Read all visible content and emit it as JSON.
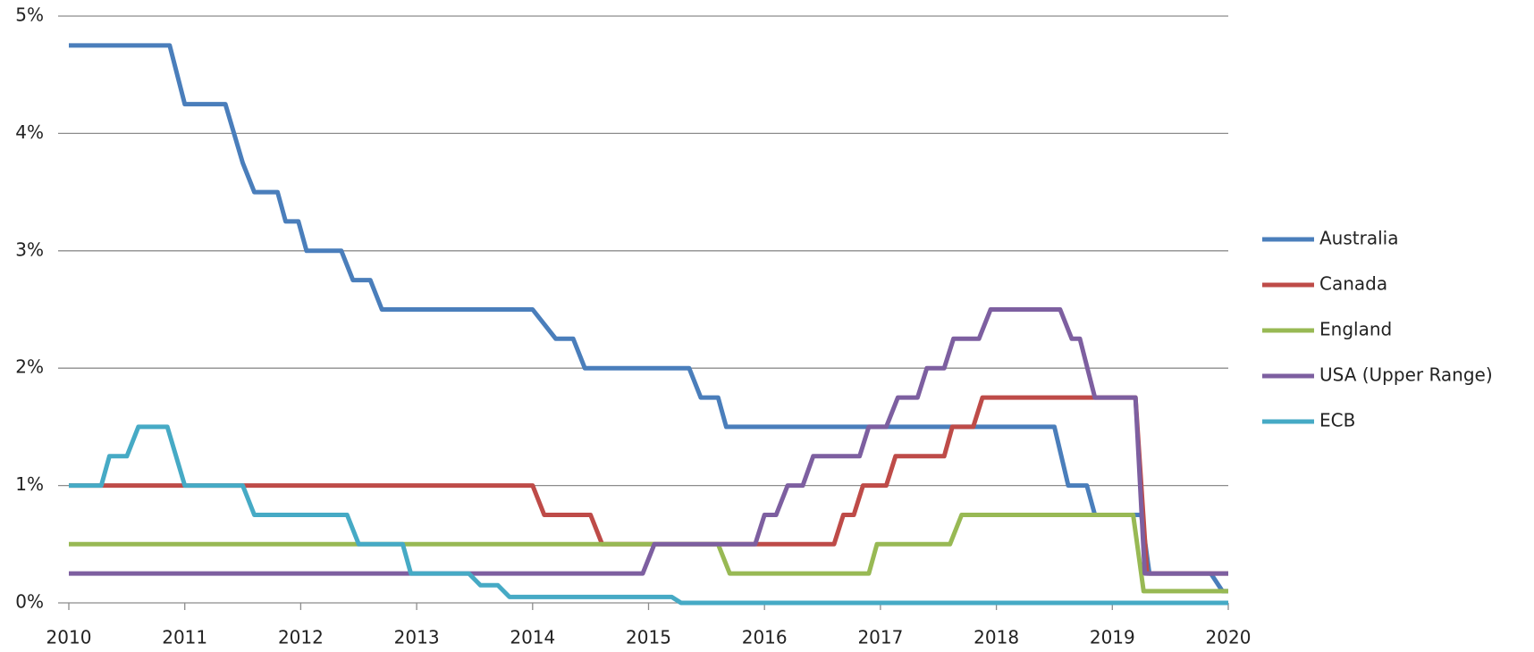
{
  "chart_data": {
    "type": "line",
    "xlim": [
      2010,
      2020
    ],
    "xticks": [
      2010,
      2011,
      2012,
      2013,
      2014,
      2015,
      2016,
      2017,
      2018,
      2019,
      2020
    ],
    "ylim": [
      0,
      5
    ],
    "yticks": [
      {
        "value": 0,
        "label": "0%"
      },
      {
        "value": 1,
        "label": "1%"
      },
      {
        "value": 2,
        "label": "2%"
      },
      {
        "value": 3,
        "label": "3%"
      },
      {
        "value": 4,
        "label": "4%"
      },
      {
        "value": 5,
        "label": "5%"
      }
    ],
    "grid": true,
    "legend": "right",
    "series": [
      {
        "name": "Australia",
        "color": "#4a7ebb",
        "x": [
          2010,
          2010.87,
          2011.0,
          2011.35,
          2011.5,
          2011.6,
          2011.8,
          2011.87,
          2011.98,
          2012.05,
          2012.35,
          2012.45,
          2012.6,
          2012.7,
          2014.0,
          2014.2,
          2014.35,
          2014.45,
          2015.35,
          2015.45,
          2015.6,
          2015.67,
          2018.5,
          2018.62,
          2018.78,
          2018.85,
          2019.25,
          2019.32,
          2019.85,
          2019.95,
          2020
        ],
        "values": [
          4.75,
          4.75,
          4.25,
          4.25,
          3.75,
          3.5,
          3.5,
          3.25,
          3.25,
          3.0,
          3.0,
          2.75,
          2.75,
          2.5,
          2.5,
          2.25,
          2.25,
          2.0,
          2.0,
          1.75,
          1.75,
          1.5,
          1.5,
          1.0,
          1.0,
          0.75,
          0.75,
          0.25,
          0.25,
          0.1,
          0.1
        ]
      },
      {
        "name": "Canada",
        "color": "#be4b48",
        "x": [
          2010,
          2014.0,
          2014.1,
          2014.5,
          2014.6,
          2016.6,
          2016.68,
          2016.77,
          2016.85,
          2017.05,
          2017.13,
          2017.55,
          2017.62,
          2017.8,
          2017.88,
          2019.2,
          2019.3,
          2020
        ],
        "values": [
          1.0,
          1.0,
          0.75,
          0.75,
          0.5,
          0.5,
          0.75,
          0.75,
          1.0,
          1.0,
          1.25,
          1.25,
          1.5,
          1.5,
          1.75,
          1.75,
          0.25,
          0.25
        ]
      },
      {
        "name": "England",
        "color": "#98b954",
        "x": [
          2010,
          2015.6,
          2015.7,
          2016.9,
          2016.97,
          2017.6,
          2017.7,
          2019.18,
          2019.27,
          2020
        ],
        "values": [
          0.5,
          0.5,
          0.25,
          0.25,
          0.5,
          0.5,
          0.75,
          0.75,
          0.1,
          0.1
        ]
      },
      {
        "name": "USA (Upper Range)",
        "color": "#7d5fa0",
        "x": [
          2010,
          2014.95,
          2015.05,
          2015.92,
          2016.0,
          2016.1,
          2016.2,
          2016.33,
          2016.42,
          2016.82,
          2016.9,
          2017.05,
          2017.15,
          2017.32,
          2017.4,
          2017.55,
          2017.63,
          2017.85,
          2017.95,
          2018.55,
          2018.65,
          2018.72,
          2018.85,
          2019.2,
          2019.28,
          2020
        ],
        "values": [
          0.25,
          0.25,
          0.5,
          0.5,
          0.75,
          0.75,
          1.0,
          1.0,
          1.25,
          1.25,
          1.5,
          1.5,
          1.75,
          1.75,
          2.0,
          2.0,
          2.25,
          2.25,
          2.5,
          2.5,
          2.25,
          2.25,
          1.75,
          1.75,
          0.25,
          0.25
        ]
      },
      {
        "name": "ECB",
        "color": "#46aac5",
        "x": [
          2010,
          2010.28,
          2010.35,
          2010.5,
          2010.6,
          2010.85,
          2011.0,
          2011.5,
          2011.6,
          2012.4,
          2012.5,
          2012.88,
          2012.95,
          2013.45,
          2013.55,
          2013.7,
          2013.8,
          2015.2,
          2015.28,
          2020
        ],
        "values": [
          1.0,
          1.0,
          1.25,
          1.25,
          1.5,
          1.5,
          1.0,
          1.0,
          0.75,
          0.75,
          0.5,
          0.5,
          0.25,
          0.25,
          0.15,
          0.15,
          0.05,
          0.05,
          0,
          0
        ]
      }
    ]
  }
}
